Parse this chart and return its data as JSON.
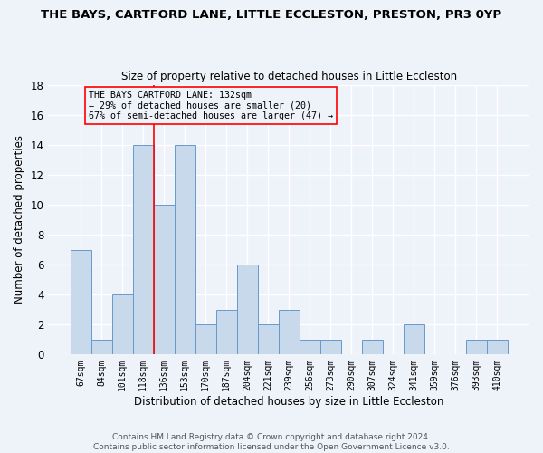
{
  "title": "THE BAYS, CARTFORD LANE, LITTLE ECCLESTON, PRESTON, PR3 0YP",
  "subtitle": "Size of property relative to detached houses in Little Eccleston",
  "xlabel": "Distribution of detached houses by size in Little Eccleston",
  "ylabel": "Number of detached properties",
  "bar_color": "#c9d9ec",
  "bar_edge_color": "#6699cc",
  "categories": [
    "67sqm",
    "84sqm",
    "101sqm",
    "118sqm",
    "136sqm",
    "153sqm",
    "170sqm",
    "187sqm",
    "204sqm",
    "221sqm",
    "239sqm",
    "256sqm",
    "273sqm",
    "290sqm",
    "307sqm",
    "324sqm",
    "341sqm",
    "359sqm",
    "376sqm",
    "393sqm",
    "410sqm"
  ],
  "values": [
    7,
    1,
    4,
    14,
    10,
    14,
    2,
    3,
    6,
    2,
    3,
    1,
    1,
    0,
    1,
    0,
    2,
    0,
    0,
    1,
    1
  ],
  "ylim": [
    0,
    18
  ],
  "yticks": [
    0,
    2,
    4,
    6,
    8,
    10,
    12,
    14,
    16,
    18
  ],
  "property_label": "THE BAYS CARTFORD LANE: 132sqm",
  "annotation_line1": "← 29% of detached houses are smaller (20)",
  "annotation_line2": "67% of semi-detached houses are larger (47) →",
  "vline_x": 3.5,
  "bg_color": "#eef2f9",
  "grid_color": "#ffffff",
  "footer1": "Contains HM Land Registry data © Crown copyright and database right 2024.",
  "footer2": "Contains public sector information licensed under the Open Government Licence v3.0."
}
